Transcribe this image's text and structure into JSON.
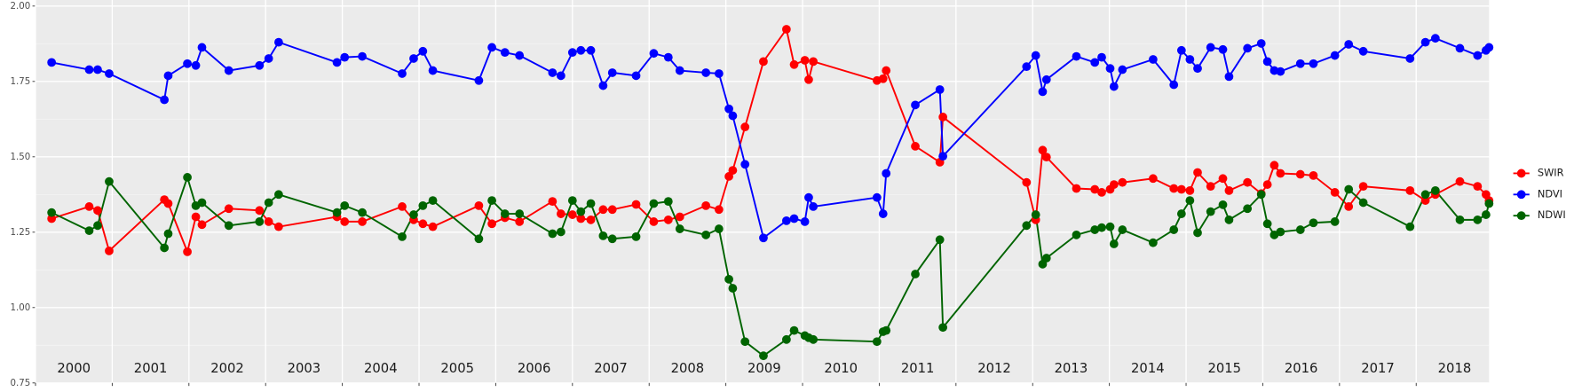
{
  "chart_data": {
    "type": "line",
    "x": [
      2000.21,
      2000.7,
      2000.81,
      2000.96,
      2001.68,
      2001.73,
      2001.98,
      2002.09,
      2002.17,
      2002.52,
      2002.92,
      2003.04,
      2003.17,
      2003.93,
      2004.03,
      2004.26,
      2004.78,
      2004.93,
      2005.05,
      2005.18,
      2005.78,
      2005.95,
      2006.12,
      2006.31,
      2006.74,
      2006.85,
      2007.0,
      2007.11,
      2007.24,
      2007.4,
      2007.52,
      2007.83,
      2008.06,
      2008.25,
      2008.4,
      2008.74,
      2008.91,
      2009.04,
      2009.09,
      2009.25,
      2009.49,
      2009.79,
      2009.89,
      2010.03,
      2010.08,
      2010.14,
      2010.97,
      2011.05,
      2011.09,
      2011.47,
      2011.79,
      2011.83,
      2012.92,
      2013.04,
      2013.13,
      2013.18,
      2013.57,
      2013.81,
      2013.9,
      2014.01,
      2014.06,
      2014.17,
      2014.57,
      2014.84,
      2014.94,
      2015.05,
      2015.15,
      2015.32,
      2015.48,
      2015.56,
      2015.8,
      2015.98,
      2016.06,
      2016.15,
      2016.23,
      2016.49,
      2016.66,
      2016.94,
      2017.12,
      2017.31,
      2017.92,
      2018.12,
      2018.25,
      2018.57,
      2018.8,
      2018.91,
      2018.95
    ],
    "series": [
      {
        "name": "SWIR",
        "color": "#ff0000",
        "values": [
          1.295,
          1.335,
          1.322,
          1.188,
          1.358,
          1.345,
          1.185,
          1.301,
          1.275,
          1.328,
          1.322,
          1.285,
          1.268,
          1.301,
          1.285,
          1.285,
          1.335,
          1.291,
          1.278,
          1.268,
          1.338,
          1.278,
          1.298,
          1.285,
          1.352,
          1.311,
          1.308,
          1.295,
          1.291,
          1.325,
          1.325,
          1.342,
          1.285,
          1.291,
          1.301,
          1.338,
          1.325,
          1.435,
          1.455,
          1.599,
          1.816,
          1.923,
          1.806,
          1.82,
          1.756,
          1.816,
          1.753,
          1.759,
          1.786,
          1.535,
          1.482,
          1.632,
          1.415,
          1.291,
          1.522,
          1.499,
          1.395,
          1.392,
          1.382,
          1.392,
          1.408,
          1.415,
          1.428,
          1.395,
          1.392,
          1.388,
          1.448,
          1.402,
          1.428,
          1.388,
          1.415,
          1.378,
          1.408,
          1.472,
          1.445,
          1.442,
          1.438,
          1.382,
          1.335,
          1.402,
          1.388,
          1.355,
          1.375,
          1.418,
          1.402,
          1.375,
          1.355
        ]
      },
      {
        "name": "NDVI",
        "color": "#0000ff",
        "values": [
          1.813,
          1.789,
          1.789,
          1.776,
          1.689,
          1.769,
          1.809,
          1.803,
          1.863,
          1.786,
          1.803,
          1.826,
          1.88,
          1.813,
          1.83,
          1.833,
          1.776,
          1.826,
          1.85,
          1.786,
          1.753,
          1.863,
          1.846,
          1.836,
          1.779,
          1.769,
          1.846,
          1.853,
          1.853,
          1.736,
          1.779,
          1.769,
          1.843,
          1.83,
          1.786,
          1.779,
          1.776,
          1.659,
          1.636,
          1.475,
          1.231,
          1.288,
          1.295,
          1.285,
          1.365,
          1.335,
          1.365,
          1.311,
          1.445,
          1.672,
          1.723,
          1.502,
          1.799,
          1.836,
          1.716,
          1.756,
          1.833,
          1.813,
          1.83,
          1.793,
          1.733,
          1.789,
          1.823,
          1.739,
          1.853,
          1.823,
          1.793,
          1.863,
          1.856,
          1.766,
          1.86,
          1.876,
          1.816,
          1.786,
          1.783,
          1.809,
          1.809,
          1.836,
          1.873,
          1.85,
          1.826,
          1.88,
          1.893,
          1.86,
          1.836,
          1.853,
          1.863
        ]
      },
      {
        "name": "NDWI",
        "color": "#006400",
        "values": [
          1.315,
          1.255,
          1.272,
          1.418,
          1.198,
          1.245,
          1.432,
          1.338,
          1.348,
          1.272,
          1.285,
          1.348,
          1.375,
          1.315,
          1.338,
          1.315,
          1.235,
          1.308,
          1.338,
          1.355,
          1.228,
          1.355,
          1.311,
          1.311,
          1.245,
          1.251,
          1.355,
          1.318,
          1.345,
          1.238,
          1.228,
          1.235,
          1.345,
          1.352,
          1.261,
          1.241,
          1.261,
          1.094,
          1.064,
          0.887,
          0.84,
          0.894,
          0.924,
          0.907,
          0.9,
          0.894,
          0.887,
          0.92,
          0.924,
          1.111,
          1.225,
          0.934,
          1.272,
          1.308,
          1.144,
          1.164,
          1.241,
          1.258,
          1.265,
          1.268,
          1.211,
          1.258,
          1.215,
          1.258,
          1.311,
          1.355,
          1.248,
          1.318,
          1.341,
          1.291,
          1.328,
          1.375,
          1.278,
          1.241,
          1.251,
          1.258,
          1.281,
          1.285,
          1.392,
          1.348,
          1.268,
          1.375,
          1.388,
          1.291,
          1.291,
          1.308,
          1.345
        ]
      }
    ],
    "xlim": [
      2000,
      2018.95
    ],
    "xticks": [
      2000,
      2001,
      2002,
      2003,
      2004,
      2005,
      2006,
      2007,
      2008,
      2009,
      2010,
      2011,
      2012,
      2013,
      2014,
      2015,
      2016,
      2017,
      2018
    ],
    "ylim": [
      0.75,
      2.0
    ],
    "yticks": [
      0.75,
      {
        "value": 1,
        "label": "1.00"
      },
      1.25,
      {
        "value": 1.5,
        "label": "1.50"
      },
      1.75,
      {
        "value": 2,
        "label": "2.00"
      }
    ],
    "grid": true,
    "legend": "right"
  }
}
